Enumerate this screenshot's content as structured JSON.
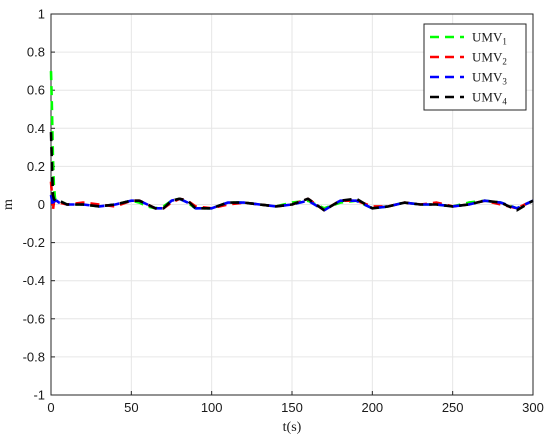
{
  "chart_data": {
    "type": "line",
    "title": "",
    "xlabel": "t(s)",
    "ylabel": "m",
    "xlim": [
      0,
      300
    ],
    "ylim": [
      -1,
      1
    ],
    "xticks": [
      0,
      50,
      100,
      150,
      200,
      250,
      300
    ],
    "xtick_labels": [
      "0",
      "50",
      "100",
      "150",
      "200",
      "250",
      "300"
    ],
    "yticks": [
      1,
      0.8,
      0.6,
      0.4,
      0.2,
      0,
      -0.2,
      -0.4,
      -0.6,
      -0.8,
      -1
    ],
    "ytick_labels": [
      "1",
      "0.8",
      "0.6",
      "0.4",
      "0.2",
      "0",
      "-0.2",
      "-0.4",
      "-0.6",
      "-0.8",
      "-1"
    ],
    "grid": true,
    "legend_position": "top-right",
    "series": [
      {
        "name": "UMV1",
        "name_base": "UMV",
        "name_sub": "1",
        "color": "#00ff00",
        "x": [
          0,
          0.6,
          1.2,
          1.8,
          2.5,
          3.5,
          5,
          10,
          20,
          30,
          40,
          50,
          55,
          60,
          65,
          70,
          75,
          80,
          85,
          90,
          100,
          110,
          120,
          130,
          140,
          150,
          160,
          170,
          180,
          190,
          200,
          210,
          220,
          230,
          240,
          250,
          260,
          270,
          280,
          290,
          300
        ],
        "y": [
          0.7,
          0.5,
          0.25,
          0.1,
          0.03,
          0.02,
          0.02,
          0.0,
          0.0,
          -0.01,
          0.0,
          0.02,
          0.01,
          -0.01,
          -0.02,
          -0.01,
          0.02,
          0.03,
          0.01,
          -0.02,
          -0.02,
          0.01,
          0.01,
          0.0,
          -0.01,
          0.01,
          0.02,
          -0.02,
          0.01,
          0.02,
          -0.02,
          -0.01,
          0.01,
          0.0,
          0.0,
          -0.01,
          0.01,
          0.02,
          0.01,
          -0.02,
          0.02
        ]
      },
      {
        "name": "UMV2",
        "name_base": "UMV",
        "name_sub": "2",
        "color": "#ff0000",
        "x": [
          0,
          0.6,
          1.2,
          1.8,
          2.5,
          3.5,
          5,
          10,
          20,
          30,
          40,
          50,
          55,
          60,
          65,
          70,
          75,
          80,
          85,
          90,
          100,
          110,
          120,
          130,
          140,
          150,
          160,
          170,
          180,
          190,
          200,
          210,
          220,
          230,
          240,
          250,
          260,
          270,
          280,
          290,
          300
        ],
        "y": [
          0.12,
          0.05,
          -0.03,
          0.01,
          0.02,
          0.02,
          0.01,
          0.0,
          0.01,
          0.0,
          -0.01,
          0.02,
          0.02,
          0.0,
          -0.02,
          -0.02,
          0.01,
          0.03,
          0.02,
          -0.01,
          -0.02,
          0.0,
          0.01,
          0.0,
          -0.01,
          0.0,
          0.03,
          -0.03,
          0.02,
          0.02,
          -0.01,
          -0.01,
          0.01,
          0.0,
          0.01,
          -0.01,
          0.0,
          0.02,
          0.0,
          -0.02,
          0.02
        ]
      },
      {
        "name": "UMV3",
        "name_base": "UMV",
        "name_sub": "3",
        "color": "#0000ff",
        "x": [
          0,
          0.6,
          1.2,
          1.8,
          2.5,
          3.5,
          5,
          10,
          20,
          30,
          40,
          50,
          55,
          60,
          65,
          70,
          75,
          80,
          85,
          90,
          100,
          110,
          120,
          130,
          140,
          150,
          160,
          170,
          180,
          190,
          200,
          210,
          220,
          230,
          240,
          250,
          260,
          270,
          280,
          290,
          300
        ],
        "y": [
          0.05,
          0.02,
          -0.01,
          0.02,
          0.02,
          0.02,
          0.01,
          0.0,
          0.0,
          -0.01,
          0.0,
          0.02,
          0.02,
          0.0,
          -0.02,
          -0.02,
          0.02,
          0.03,
          0.01,
          -0.02,
          -0.02,
          0.01,
          0.01,
          0.0,
          -0.01,
          0.0,
          0.02,
          -0.03,
          0.02,
          0.02,
          -0.02,
          -0.01,
          0.01,
          0.0,
          0.0,
          -0.01,
          0.0,
          0.02,
          0.01,
          -0.02,
          0.02
        ]
      },
      {
        "name": "UMV4",
        "name_base": "UMV",
        "name_sub": "4",
        "color": "#000000",
        "x": [
          0,
          0.6,
          1.2,
          1.8,
          2.5,
          3.5,
          5,
          10,
          20,
          30,
          40,
          50,
          55,
          60,
          65,
          70,
          75,
          80,
          85,
          90,
          100,
          110,
          120,
          130,
          140,
          150,
          160,
          170,
          180,
          190,
          200,
          210,
          220,
          230,
          240,
          250,
          260,
          270,
          280,
          290,
          300
        ],
        "y": [
          0.38,
          0.2,
          0.05,
          0.03,
          0.02,
          0.02,
          0.02,
          0.0,
          0.0,
          -0.01,
          0.0,
          0.02,
          0.02,
          0.0,
          -0.02,
          -0.02,
          0.02,
          0.03,
          0.02,
          -0.02,
          -0.02,
          0.01,
          0.01,
          0.0,
          -0.01,
          0.0,
          0.03,
          -0.03,
          0.02,
          0.03,
          -0.02,
          -0.01,
          0.01,
          0.0,
          0.0,
          -0.01,
          0.0,
          0.02,
          0.01,
          -0.03,
          0.02
        ]
      }
    ]
  }
}
